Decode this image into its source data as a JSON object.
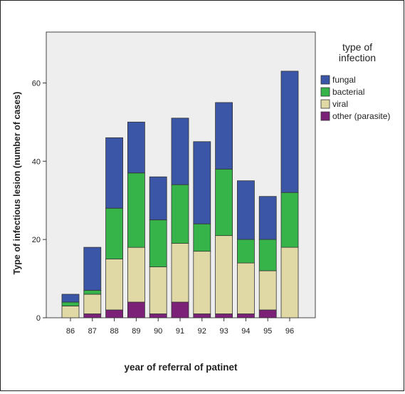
{
  "chart_data": {
    "type": "bar",
    "stacked": true,
    "xlabel": "year of referral of patinet",
    "ylabel": "Type of infectious lesion (number of cases)",
    "categories": [
      "86",
      "87",
      "88",
      "89",
      "90",
      "91",
      "92",
      "93",
      "94",
      "95",
      "96"
    ],
    "ylim": [
      0,
      73
    ],
    "yticks": [
      "0",
      "20",
      "40",
      "60"
    ],
    "grid": false,
    "legend": {
      "title": "type of\ninfection",
      "placement": "right"
    },
    "series": [
      {
        "name": "other (parasite)",
        "color": "#7b2178",
        "values": [
          0,
          1,
          2,
          4,
          1,
          4,
          1,
          1,
          1,
          2,
          0
        ]
      },
      {
        "name": "viral",
        "color": "#e0d9a6",
        "values": [
          3,
          5,
          13,
          14,
          12,
          15,
          16,
          20,
          13,
          10,
          18
        ]
      },
      {
        "name": "bacterial",
        "color": "#36b44a",
        "values": [
          1,
          1,
          13,
          19,
          12,
          15,
          7,
          17,
          6,
          8,
          14
        ]
      },
      {
        "name": "fungal",
        "color": "#3b56a6",
        "values": [
          2,
          11,
          18,
          13,
          11,
          17,
          21,
          17,
          15,
          11,
          31
        ]
      }
    ],
    "plot_background": "#eeeeee"
  }
}
